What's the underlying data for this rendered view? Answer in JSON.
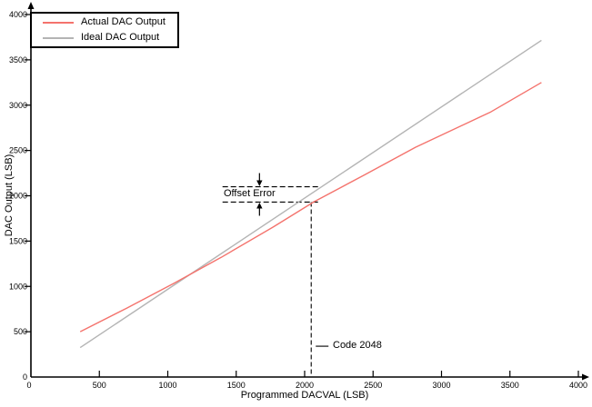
{
  "chart_data": {
    "type": "line",
    "title": "",
    "xlabel": "Programmed DACVAL (LSB)",
    "ylabel": "DAC Output (LSB)",
    "xlim": [
      0,
      4000
    ],
    "ylim": [
      0,
      4000
    ],
    "xticks": [
      0,
      500,
      1000,
      1500,
      2000,
      2500,
      3000,
      3500,
      4000
    ],
    "yticks": [
      0,
      500,
      1000,
      1500,
      2000,
      2500,
      3000,
      3500,
      4000
    ],
    "grid": false,
    "axis_color": "#000000",
    "legend": {
      "position": "top-left",
      "entries": [
        {
          "label": "Actual DAC Output",
          "color": "#f4736d"
        },
        {
          "label": "Ideal DAC Output",
          "color": "#b4b4b4"
        }
      ]
    },
    "series": [
      {
        "name": "Actual DAC Output",
        "color": "#f4736d",
        "x": [
          360,
          700,
          1040,
          1390,
          1770,
          2070,
          2430,
          2810,
          3360,
          3730
        ],
        "y": [
          500,
          760,
          1030,
          1320,
          1655,
          1935,
          2225,
          2535,
          2925,
          3250
        ]
      },
      {
        "name": "Ideal DAC Output",
        "color": "#b4b4b4",
        "x": [
          360,
          3730
        ],
        "y": [
          325,
          3715
        ]
      }
    ],
    "annotations": {
      "offset_error": {
        "label": "Offset Error",
        "x_start": 1400,
        "x_end": 2100,
        "y_ideal": 2100,
        "y_actual": 1930,
        "arrow_x": 1670
      },
      "code_marker": {
        "label": "Code 2048",
        "x": 2048,
        "leader_y": 340
      }
    }
  }
}
